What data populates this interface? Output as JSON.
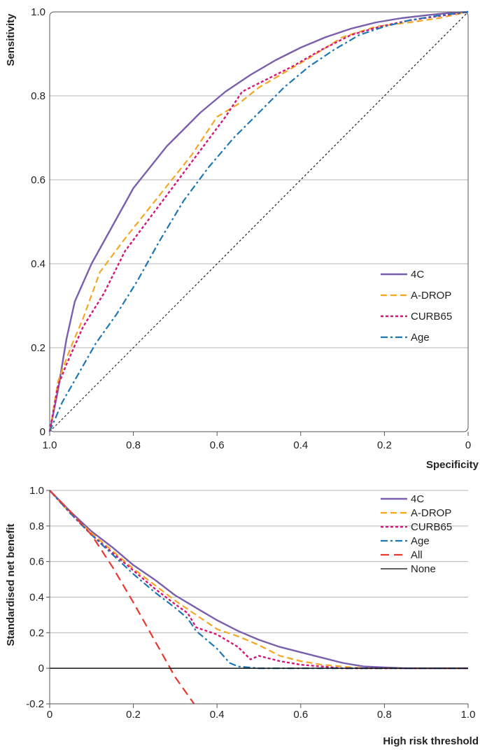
{
  "chart_data": [
    {
      "type": "line",
      "title": "",
      "xlabel": "Specificity",
      "ylabel": "Sensitivity",
      "xlim": [
        1.0,
        0.0
      ],
      "ylim": [
        0.0,
        1.0
      ],
      "x_reversed": true,
      "grid": "horizontal",
      "legend_position": "lower-right",
      "x_ticks": [
        "1.0",
        "0.8",
        "0.6",
        "0.4",
        "0.2",
        "0"
      ],
      "y_ticks": [
        "0",
        "0.2",
        "0.4",
        "0.6",
        "0.8",
        "1.0"
      ],
      "series": [
        {
          "name": "4C",
          "color": "#7a5fae",
          "style": "solid",
          "x": [
            1.0,
            0.98,
            0.96,
            0.94,
            0.9,
            0.85,
            0.8,
            0.72,
            0.64,
            0.58,
            0.52,
            0.46,
            0.4,
            0.34,
            0.28,
            0.22,
            0.16,
            0.1,
            0.05,
            0.0
          ],
          "y": [
            0.0,
            0.1,
            0.22,
            0.31,
            0.4,
            0.49,
            0.58,
            0.68,
            0.76,
            0.81,
            0.85,
            0.885,
            0.915,
            0.94,
            0.96,
            0.975,
            0.985,
            0.992,
            0.997,
            1.0
          ]
        },
        {
          "name": "A-DROP",
          "color": "#f5a623",
          "style": "dashed",
          "x": [
            1.0,
            0.98,
            0.95,
            0.92,
            0.88,
            0.82,
            0.74,
            0.66,
            0.6,
            0.55,
            0.5,
            0.44,
            0.38,
            0.3,
            0.22,
            0.14,
            0.07,
            0.0
          ],
          "y": [
            0.0,
            0.12,
            0.2,
            0.27,
            0.38,
            0.46,
            0.56,
            0.66,
            0.75,
            0.78,
            0.82,
            0.855,
            0.89,
            0.94,
            0.965,
            0.975,
            0.985,
            1.0
          ]
        },
        {
          "name": "CURB65",
          "color": "#d4157a",
          "style": "dotted",
          "x": [
            1.0,
            0.98,
            0.96,
            0.92,
            0.87,
            0.82,
            0.76,
            0.7,
            0.64,
            0.58,
            0.54,
            0.48,
            0.42,
            0.35,
            0.28,
            0.21,
            0.14,
            0.07,
            0.0
          ],
          "y": [
            0.0,
            0.11,
            0.16,
            0.25,
            0.33,
            0.43,
            0.51,
            0.59,
            0.67,
            0.75,
            0.81,
            0.84,
            0.87,
            0.91,
            0.945,
            0.965,
            0.98,
            0.99,
            1.0
          ]
        },
        {
          "name": "Age",
          "color": "#1f77b4",
          "style": "dashdot",
          "x": [
            1.0,
            0.97,
            0.93,
            0.89,
            0.84,
            0.79,
            0.74,
            0.68,
            0.62,
            0.56,
            0.5,
            0.44,
            0.38,
            0.32,
            0.26,
            0.2,
            0.14,
            0.08,
            0.0
          ],
          "y": [
            0.0,
            0.07,
            0.14,
            0.21,
            0.28,
            0.36,
            0.45,
            0.55,
            0.63,
            0.7,
            0.76,
            0.82,
            0.87,
            0.91,
            0.945,
            0.965,
            0.98,
            0.99,
            1.0
          ]
        },
        {
          "name": "",
          "color": "#222222",
          "style": "fine-dotted",
          "x": [
            1.0,
            0.0
          ],
          "y": [
            0.0,
            1.0
          ]
        }
      ]
    },
    {
      "type": "line",
      "title": "",
      "xlabel": "High risk threshold",
      "ylabel": "Standardised net benefit",
      "xlim": [
        0.0,
        1.0
      ],
      "ylim": [
        -0.2,
        1.0
      ],
      "grid": "horizontal",
      "legend_position": "top-right",
      "x_ticks": [
        "0",
        "0.2",
        "0.4",
        "0.6",
        "0.8",
        "1.0"
      ],
      "y_ticks": [
        "-0.2",
        "0",
        "0.2",
        "0.4",
        "0.6",
        "0.8",
        "1.0"
      ],
      "series": [
        {
          "name": "4C",
          "color": "#7a5fae",
          "style": "solid",
          "x": [
            0.0,
            0.05,
            0.1,
            0.15,
            0.2,
            0.25,
            0.3,
            0.35,
            0.4,
            0.45,
            0.5,
            0.55,
            0.6,
            0.65,
            0.7,
            0.75,
            0.8,
            0.85,
            0.9,
            1.0
          ],
          "y": [
            1.0,
            0.88,
            0.77,
            0.68,
            0.58,
            0.5,
            0.41,
            0.34,
            0.27,
            0.21,
            0.16,
            0.12,
            0.09,
            0.06,
            0.03,
            0.01,
            0.005,
            0.0,
            0.0,
            0.0
          ]
        },
        {
          "name": "A-DROP",
          "color": "#f5a623",
          "style": "dashed",
          "x": [
            0.0,
            0.05,
            0.1,
            0.15,
            0.2,
            0.25,
            0.3,
            0.35,
            0.4,
            0.45,
            0.5,
            0.55,
            0.6,
            0.65,
            0.7,
            0.75,
            0.8,
            0.9,
            1.0
          ],
          "y": [
            1.0,
            0.87,
            0.76,
            0.66,
            0.56,
            0.47,
            0.38,
            0.3,
            0.22,
            0.18,
            0.13,
            0.07,
            0.04,
            0.02,
            0.01,
            0.0,
            0.0,
            0.0,
            0.0
          ]
        },
        {
          "name": "CURB65",
          "color": "#d4157a",
          "style": "dotted",
          "x": [
            0.0,
            0.05,
            0.1,
            0.15,
            0.2,
            0.25,
            0.3,
            0.33,
            0.35,
            0.4,
            0.45,
            0.48,
            0.5,
            0.55,
            0.6,
            0.65,
            0.7,
            0.8,
            1.0
          ],
          "y": [
            1.0,
            0.87,
            0.75,
            0.65,
            0.55,
            0.45,
            0.36,
            0.31,
            0.23,
            0.19,
            0.12,
            0.05,
            0.07,
            0.04,
            0.02,
            0.01,
            0.0,
            0.0,
            0.0
          ]
        },
        {
          "name": "Age",
          "color": "#1f77b4",
          "style": "dashdot",
          "x": [
            0.0,
            0.05,
            0.1,
            0.15,
            0.2,
            0.25,
            0.3,
            0.33,
            0.35,
            0.4,
            0.43,
            0.45,
            0.5,
            0.6,
            0.8,
            1.0
          ],
          "y": [
            1.0,
            0.87,
            0.75,
            0.64,
            0.53,
            0.43,
            0.34,
            0.28,
            0.21,
            0.11,
            0.03,
            0.01,
            0.0,
            0.0,
            0.0,
            0.0
          ]
        },
        {
          "name": "All",
          "color": "#e8382f",
          "style": "long-dashed",
          "x": [
            0.0,
            0.05,
            0.1,
            0.15,
            0.2,
            0.25,
            0.3,
            0.345
          ],
          "y": [
            1.0,
            0.88,
            0.75,
            0.57,
            0.37,
            0.16,
            -0.05,
            -0.2
          ]
        },
        {
          "name": "None",
          "color": "#000000",
          "style": "solid",
          "x": [
            0.0,
            1.0
          ],
          "y": [
            0.0,
            0.0
          ]
        }
      ]
    }
  ]
}
